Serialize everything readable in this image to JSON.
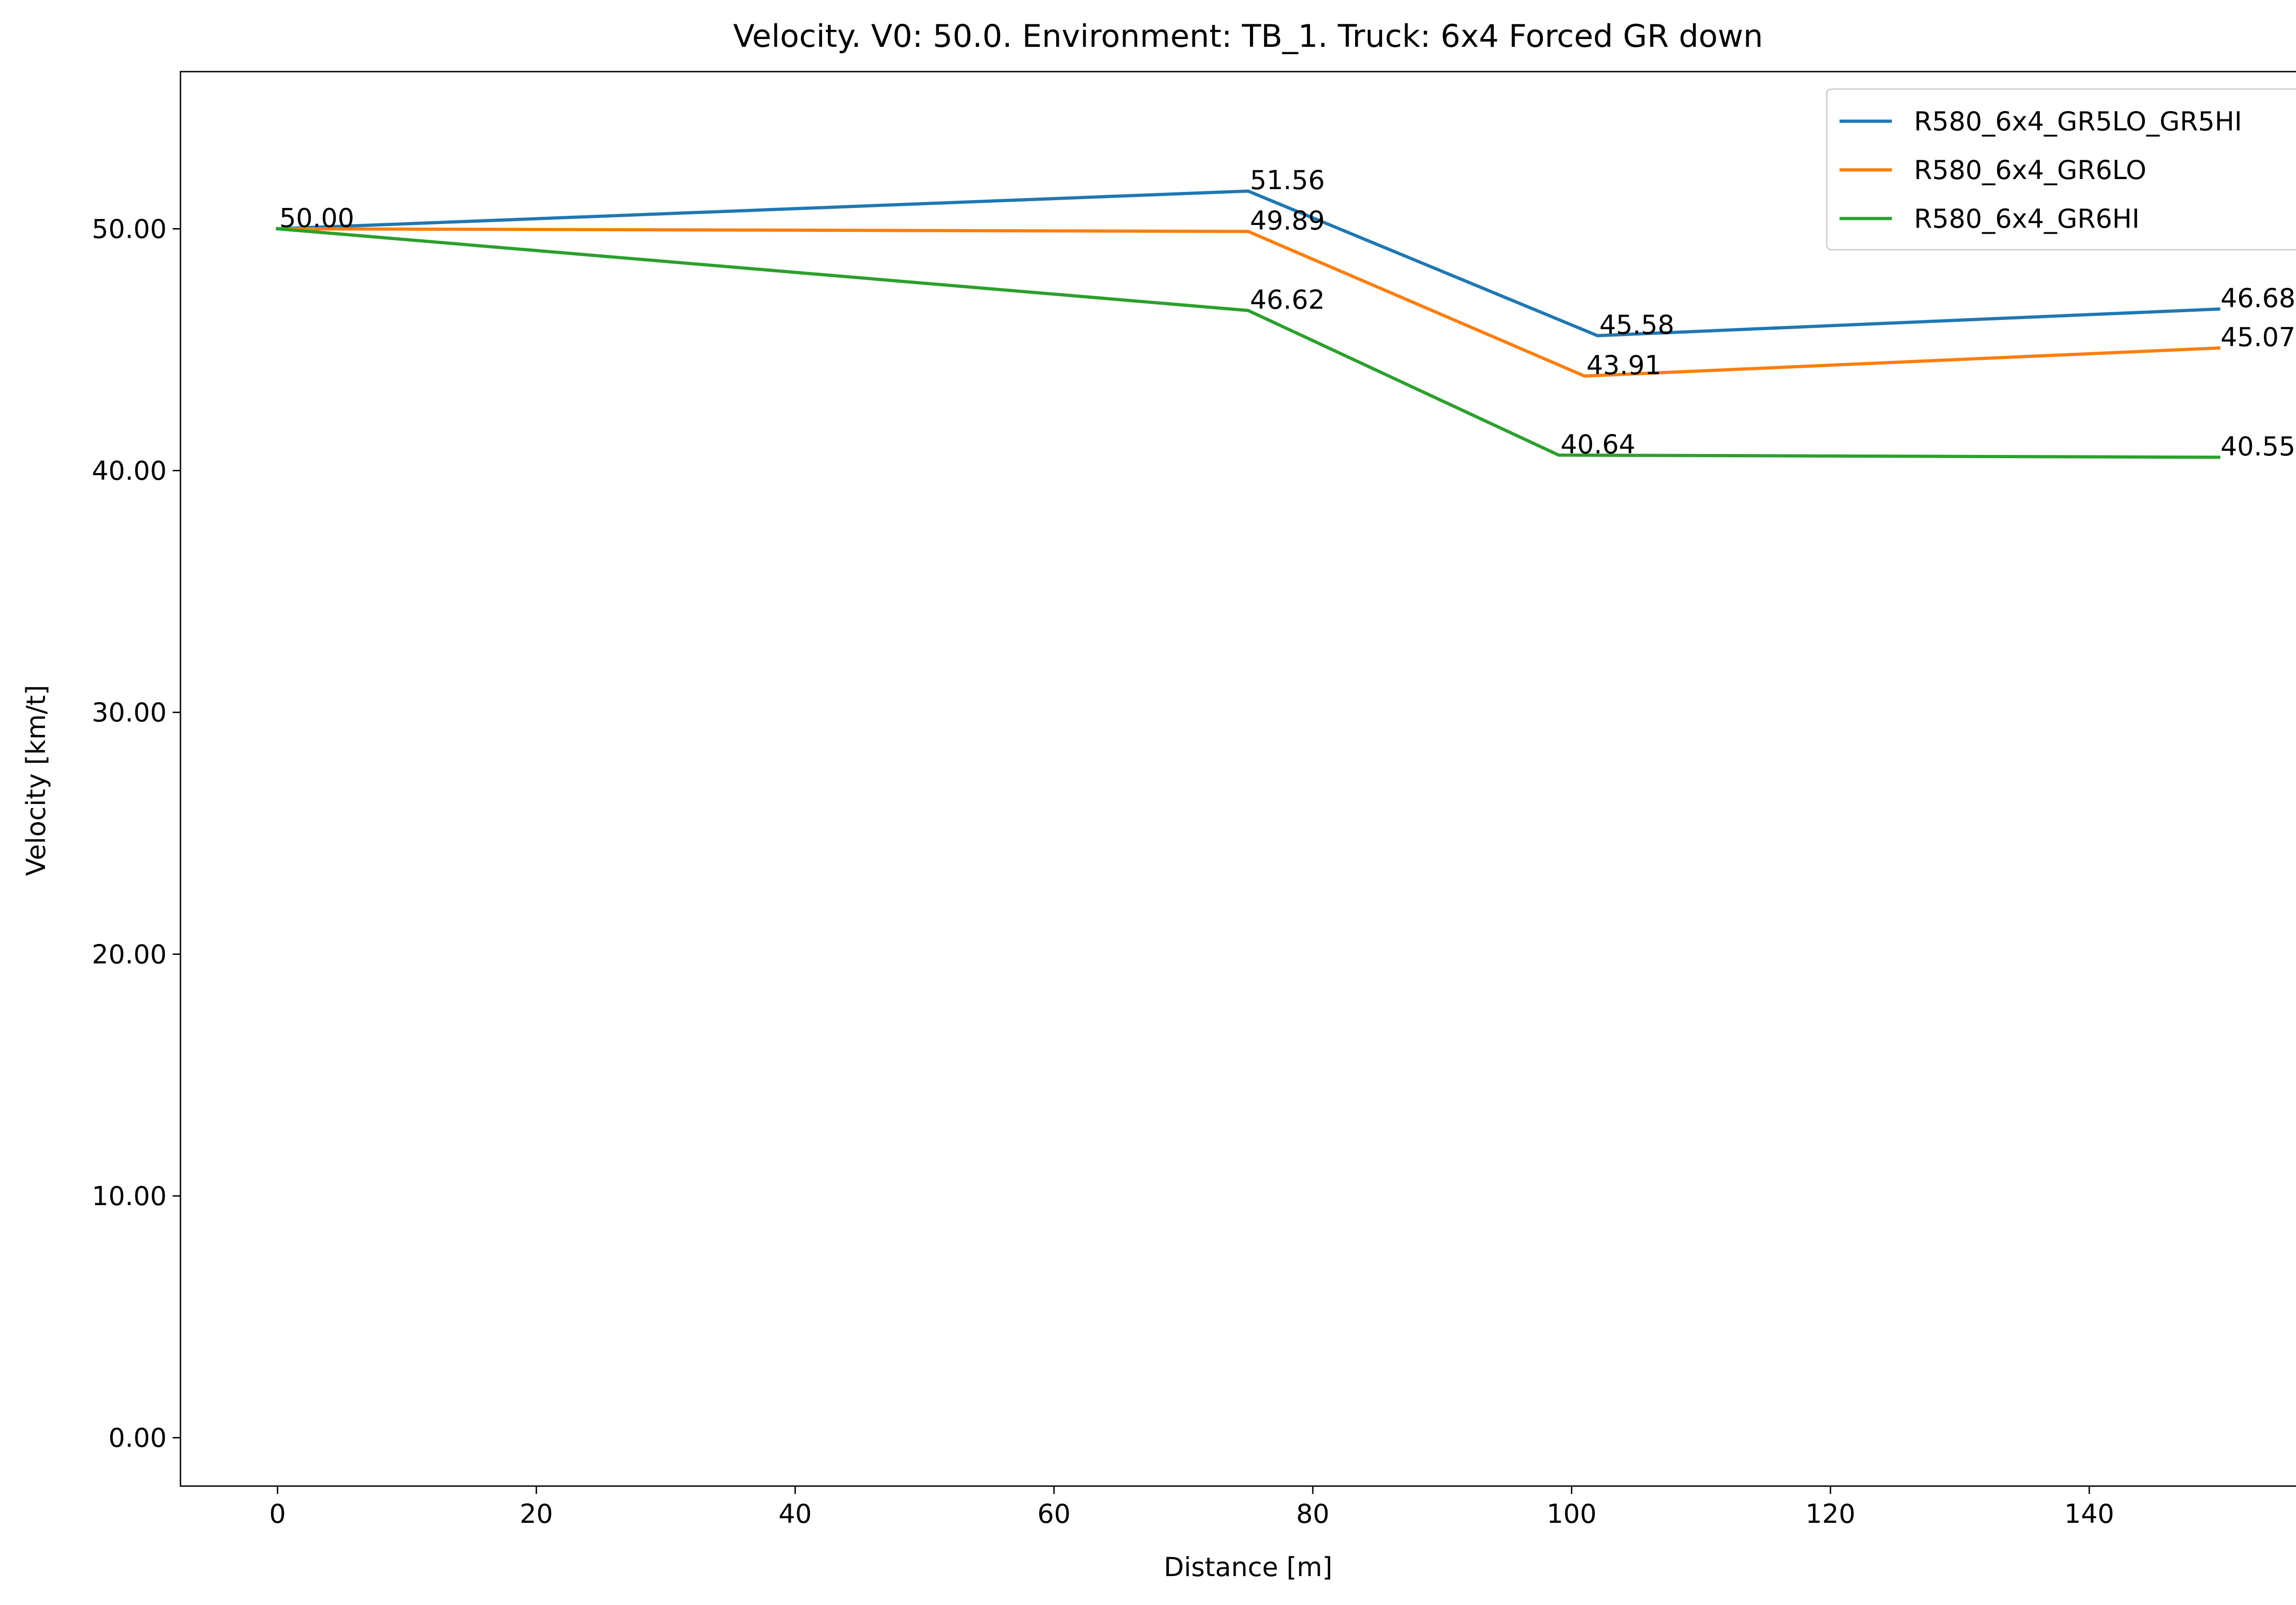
{
  "chart_data": {
    "type": "line",
    "title": "Velocity. V0: 50.0. Environment: TB_1. Truck: 6x4 Forced GR down",
    "xlabel": "Distance [m]",
    "ylabel": "Velocity [km/t]",
    "xlim": [
      -7.5,
      157.5
    ],
    "ylim": [
      -2.0,
      56.5
    ],
    "xticks": [
      0,
      20,
      40,
      60,
      80,
      100,
      120,
      140
    ],
    "xtick_labels": [
      "0",
      "20",
      "40",
      "60",
      "80",
      "100",
      "120",
      "140"
    ],
    "yticks": [
      0,
      10,
      20,
      30,
      40,
      50
    ],
    "ytick_labels": [
      "0.00",
      "10.00",
      "20.00",
      "30.00",
      "40.00",
      "50.00"
    ],
    "grid": false,
    "legend_position": "top-right",
    "series": [
      {
        "name": "R580_6x4_GR5LO_GR5HI",
        "color": "#1f77b4",
        "x": [
          0,
          75,
          102,
          150
        ],
        "y": [
          50.0,
          51.56,
          45.58,
          46.68
        ],
        "labels": [
          "",
          "51.56",
          "45.58",
          "46.68"
        ]
      },
      {
        "name": "R580_6x4_GR6LO",
        "color": "#ff7f0e",
        "x": [
          0,
          75,
          101,
          150
        ],
        "y": [
          50.0,
          49.89,
          43.91,
          45.07
        ],
        "labels": [
          "",
          "49.89",
          "43.91",
          "45.07"
        ]
      },
      {
        "name": "R580_6x4_GR6HI",
        "color": "#2ca02c",
        "x": [
          0,
          75,
          99,
          150
        ],
        "y": [
          50.0,
          46.62,
          40.64,
          40.55
        ],
        "labels": [
          "50.00",
          "46.62",
          "40.64",
          "40.55"
        ]
      }
    ]
  }
}
